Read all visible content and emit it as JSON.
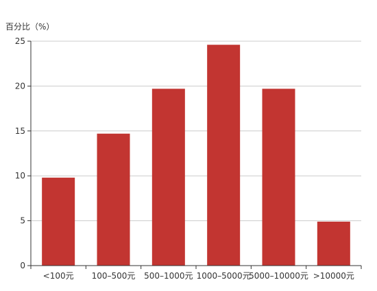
{
  "chart_data": {
    "type": "bar",
    "ylabel": "百分比（%）",
    "categories": [
      "<100元",
      "100–500元",
      "500–1000元",
      "1000–5000元",
      "5000–10000元",
      ">10000元"
    ],
    "values": [
      9.8,
      14.7,
      19.7,
      24.6,
      19.7,
      4.9
    ],
    "ylim": [
      0,
      25
    ],
    "yticks": [
      0,
      5,
      10,
      15,
      20,
      25
    ],
    "grid": true,
    "bar_color": "#c23531",
    "grid_color": "#cccccc",
    "axis_color": "#333333"
  }
}
